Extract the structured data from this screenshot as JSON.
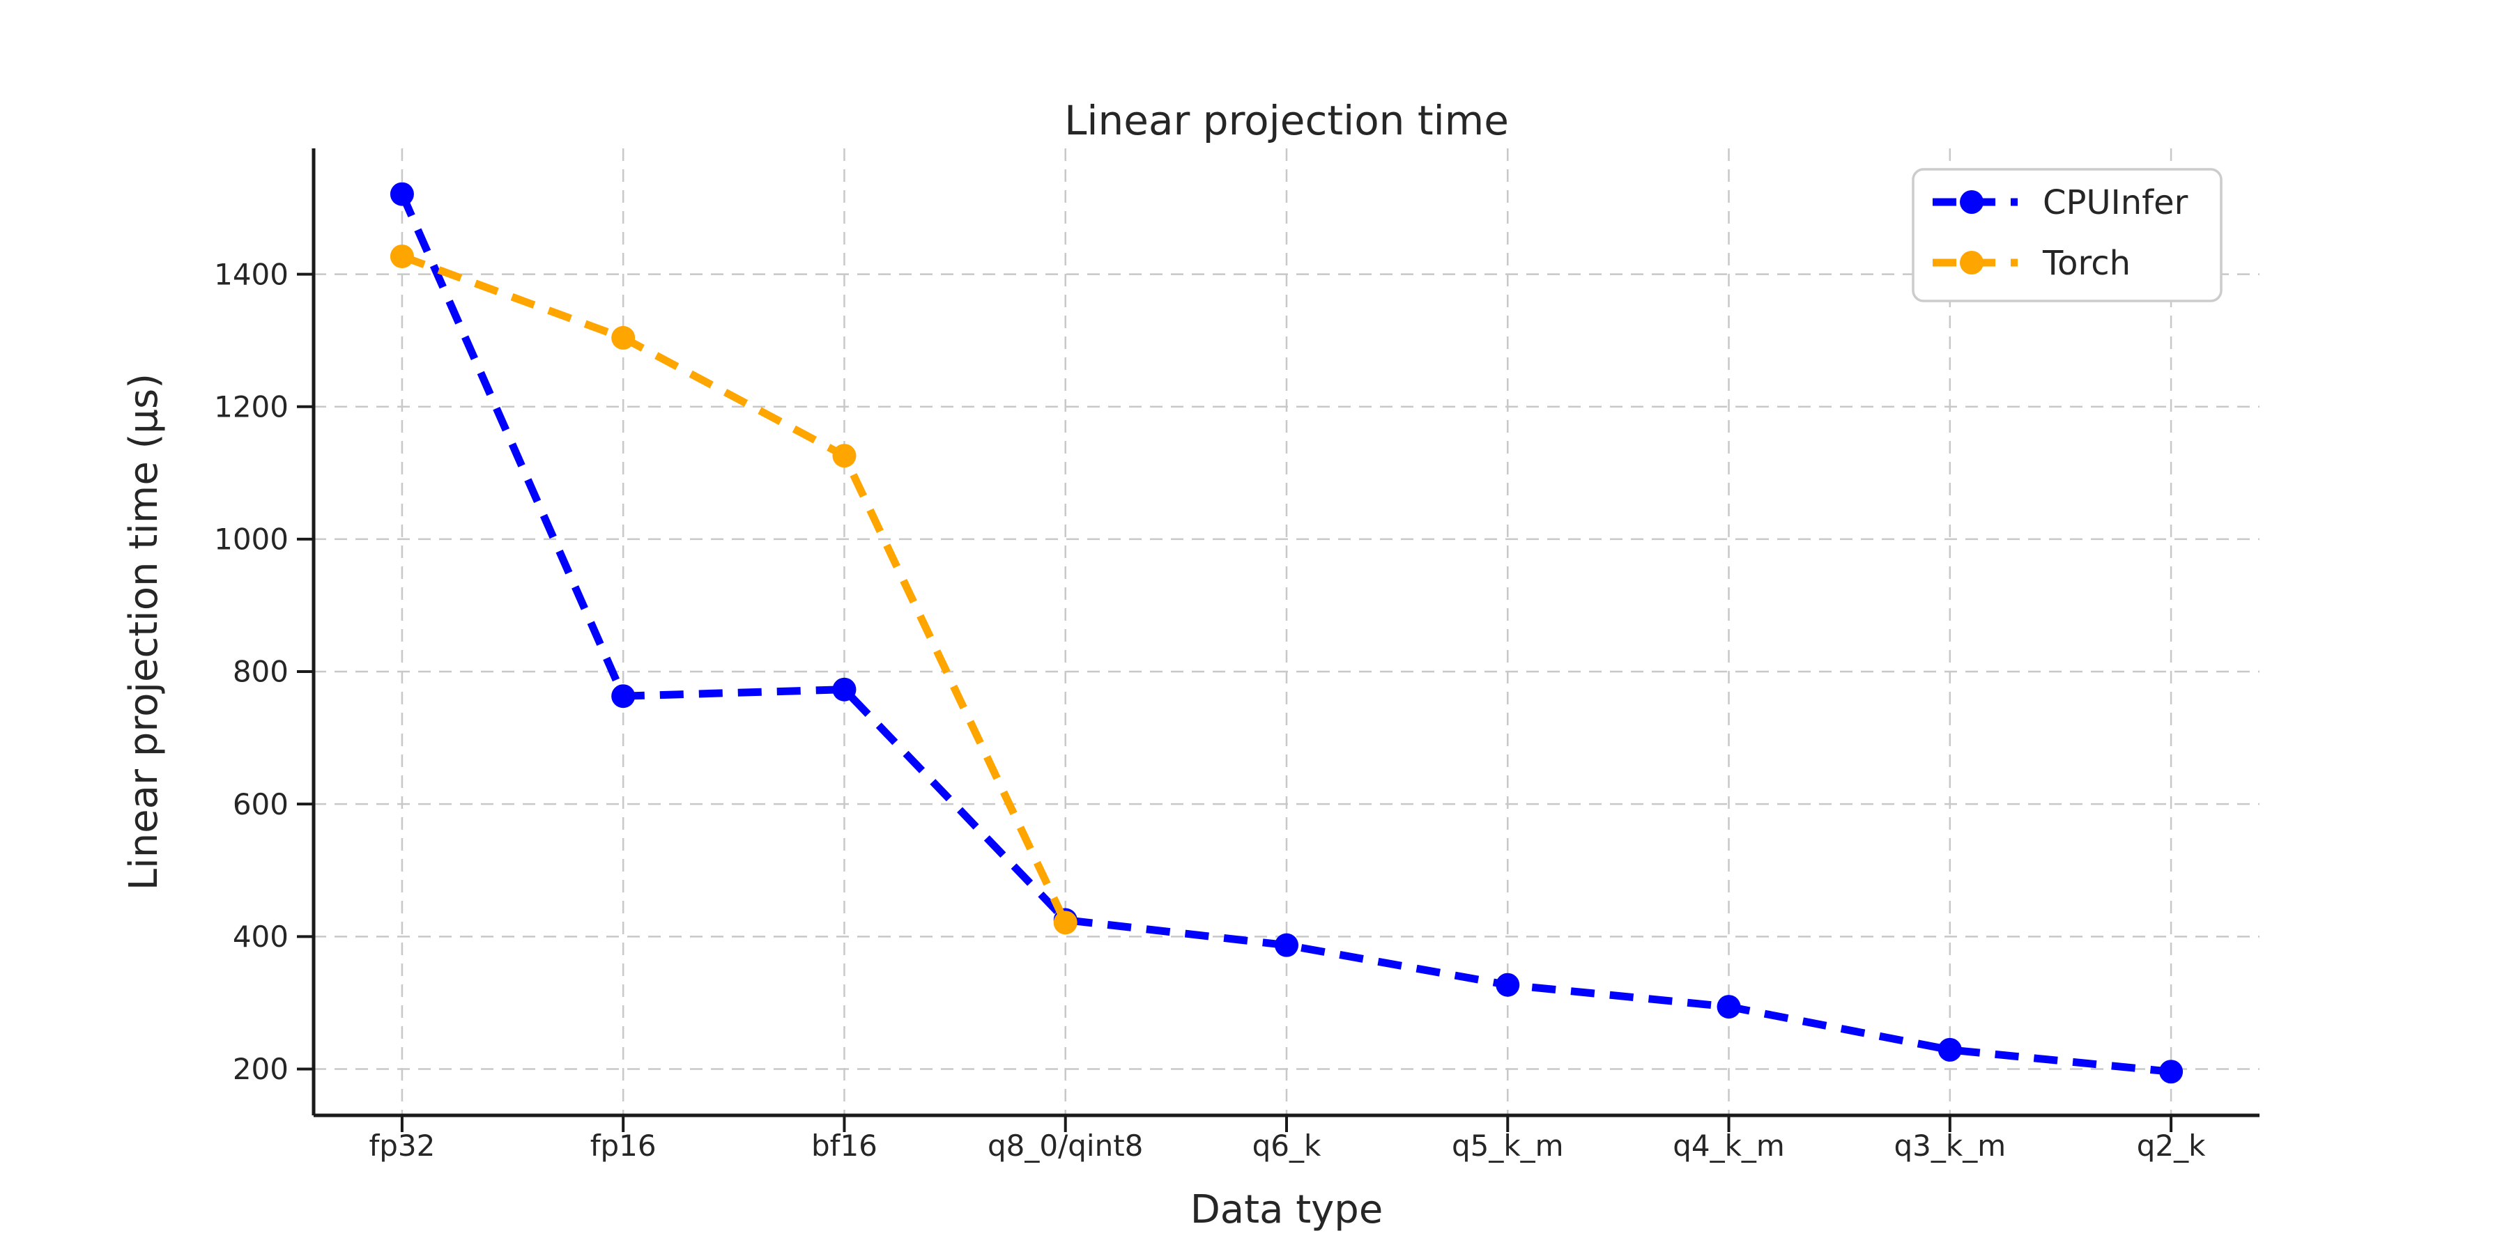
{
  "chart_data": {
    "type": "line",
    "title": "Linear projection time",
    "xlabel": "Data type",
    "ylabel": "Linear projection time (μs)",
    "categories": [
      "fp32",
      "fp16",
      "bf16",
      "q8_0/qint8",
      "q6_k",
      "q5_k_m",
      "q4_k_m",
      "q3_k_m",
      "q2_k"
    ],
    "series": [
      {
        "name": "CPUInfer",
        "color": "#0000ff",
        "values": [
          1521,
          763,
          773,
          425,
          387,
          327,
          294,
          229,
          196
        ]
      },
      {
        "name": "Torch",
        "color": "#ffa500",
        "values": [
          1427,
          1304,
          1126,
          421,
          null,
          null,
          null,
          null,
          null
        ]
      }
    ],
    "yticks": [
      200,
      400,
      600,
      800,
      1000,
      1200,
      1400
    ],
    "ylim": [
      130,
      1590
    ],
    "xlim": [
      -0.4,
      8.4
    ],
    "grid": true,
    "grid_style": "dashed",
    "line_style": "dashed",
    "marker": "circle",
    "legend_position": "upper right",
    "colors": {
      "grid": "#c8c8c8",
      "spine": "#1a1a1a",
      "text": "#262626",
      "legend_border": "#cccccc",
      "background": "#ffffff"
    }
  }
}
